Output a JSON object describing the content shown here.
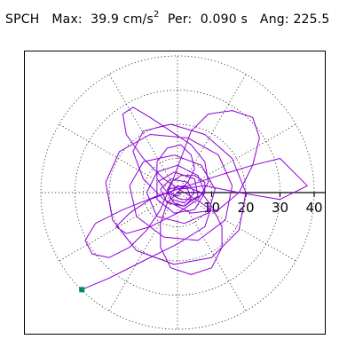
{
  "header": {
    "component": "SPCH",
    "max_label": "Max:",
    "max_value": "39.9 cm/s",
    "max_exponent": "2",
    "per_label": "Per:",
    "per_value": "0.090 s",
    "ang_label": "Ang:",
    "ang_value": "225.5"
  },
  "chart_data": {
    "type": "polar-orbit",
    "title": "SPCH",
    "units": "cm/s2",
    "max": 39.9,
    "period_s": 0.09,
    "angle_deg": 225.5,
    "rings": [
      10,
      20,
      30,
      40
    ],
    "tick_labels": [
      "10",
      "20",
      "30",
      "40"
    ],
    "spokes_deg": [
      0,
      30,
      60,
      90,
      120,
      150,
      180,
      210,
      240,
      270,
      300,
      330
    ],
    "grid": true,
    "trace_color": "#8b00d6",
    "marker_color": "#008b6b",
    "peak_point": [
      -28.0,
      -28.4
    ],
    "trace_points": [
      [
        -28.0,
        -28.4
      ],
      [
        -20,
        -25
      ],
      [
        -10,
        -20
      ],
      [
        0,
        -15
      ],
      [
        8,
        -10
      ],
      [
        10,
        -4
      ],
      [
        7,
        0
      ],
      [
        2,
        2
      ],
      [
        -3,
        1
      ],
      [
        -2,
        -2
      ],
      [
        2,
        -3
      ],
      [
        5,
        0
      ],
      [
        3,
        3
      ],
      [
        -2,
        4
      ],
      [
        -5,
        1
      ],
      [
        -3,
        -3
      ],
      [
        2,
        -4
      ],
      [
        6,
        -1
      ],
      [
        5,
        4
      ],
      [
        -1,
        6
      ],
      [
        -6,
        3
      ],
      [
        -6,
        -2
      ],
      [
        -1,
        -6
      ],
      [
        5,
        -5
      ],
      [
        8,
        0
      ],
      [
        6,
        5
      ],
      [
        0,
        8
      ],
      [
        -6,
        6
      ],
      [
        -9,
        0
      ],
      [
        -6,
        -7
      ],
      [
        2,
        -9
      ],
      [
        9,
        -6
      ],
      [
        11,
        1
      ],
      [
        7,
        8
      ],
      [
        -1,
        11
      ],
      [
        -10,
        9
      ],
      [
        -14,
        2
      ],
      [
        -12,
        -7
      ],
      [
        -4,
        -13
      ],
      [
        6,
        -14
      ],
      [
        14,
        -8
      ],
      [
        16,
        2
      ],
      [
        12,
        11
      ],
      [
        3,
        16
      ],
      [
        -8,
        17
      ],
      [
        -17,
        12
      ],
      [
        -21,
        3
      ],
      [
        -19,
        -8
      ],
      [
        -12,
        -17
      ],
      [
        -1,
        -21
      ],
      [
        10,
        -19
      ],
      [
        18,
        -11
      ],
      [
        20,
        0
      ],
      [
        16,
        10
      ],
      [
        8,
        17
      ],
      [
        -2,
        20
      ],
      [
        -10,
        18
      ],
      [
        -13,
        12
      ],
      [
        -10,
        4
      ],
      [
        -4,
        -2
      ],
      [
        4,
        -6
      ],
      [
        12,
        -5
      ],
      [
        18,
        0
      ],
      [
        22,
        8
      ],
      [
        24,
        16
      ],
      [
        22,
        22
      ],
      [
        16,
        24
      ],
      [
        9,
        23
      ],
      [
        4,
        18
      ],
      [
        1,
        10
      ],
      [
        -2,
        2
      ],
      [
        -5,
        -5
      ],
      [
        -9,
        -11
      ],
      [
        -14,
        -16
      ],
      [
        -20,
        -19
      ],
      [
        -25,
        -18
      ],
      [
        -27,
        -14
      ],
      [
        -24,
        -9
      ],
      [
        -16,
        -5
      ],
      [
        -6,
        -1
      ],
      [
        3,
        2
      ],
      [
        12,
        5
      ],
      [
        22,
        8
      ],
      [
        30,
        10
      ],
      [
        38,
        2
      ],
      [
        30,
        -2
      ],
      [
        18,
        0
      ],
      [
        8,
        2
      ],
      [
        0,
        1
      ],
      [
        -8,
        -2
      ],
      [
        -14,
        -6
      ],
      [
        -18,
        -10
      ],
      [
        -15,
        -12
      ],
      [
        -8,
        -10
      ],
      [
        0,
        -6
      ],
      [
        6,
        -2
      ],
      [
        9,
        3
      ],
      [
        8,
        9
      ],
      [
        4,
        14
      ],
      [
        -2,
        18
      ],
      [
        -8,
        22
      ],
      [
        -13,
        25
      ],
      [
        -16,
        23
      ],
      [
        -15,
        17
      ],
      [
        -10,
        10
      ],
      [
        -4,
        4
      ],
      [
        2,
        0
      ],
      [
        7,
        -3
      ],
      [
        11,
        -6
      ],
      [
        13,
        -10
      ],
      [
        13,
        -16
      ],
      [
        10,
        -22
      ],
      [
        4,
        -24
      ],
      [
        -2,
        -22
      ],
      [
        -5,
        -16
      ],
      [
        -5,
        -9
      ],
      [
        -3,
        -3
      ],
      [
        0,
        0
      ],
      [
        3,
        3
      ],
      [
        5,
        7
      ],
      [
        4,
        11
      ],
      [
        1,
        14
      ],
      [
        -3,
        13
      ],
      [
        -6,
        9
      ],
      [
        -6,
        4
      ],
      [
        -3,
        0
      ],
      [
        1,
        -2
      ],
      [
        5,
        -2
      ],
      [
        8,
        0
      ],
      [
        8,
        3
      ],
      [
        5,
        5
      ],
      [
        1,
        5
      ],
      [
        -2,
        3
      ],
      [
        -3,
        0
      ],
      [
        -1,
        -3
      ],
      [
        2,
        -4
      ],
      [
        4,
        -2
      ],
      [
        3,
        1
      ],
      [
        0,
        2
      ],
      [
        -2,
        0
      ],
      [
        0,
        -1
      ],
      [
        1,
        0
      ]
    ]
  }
}
